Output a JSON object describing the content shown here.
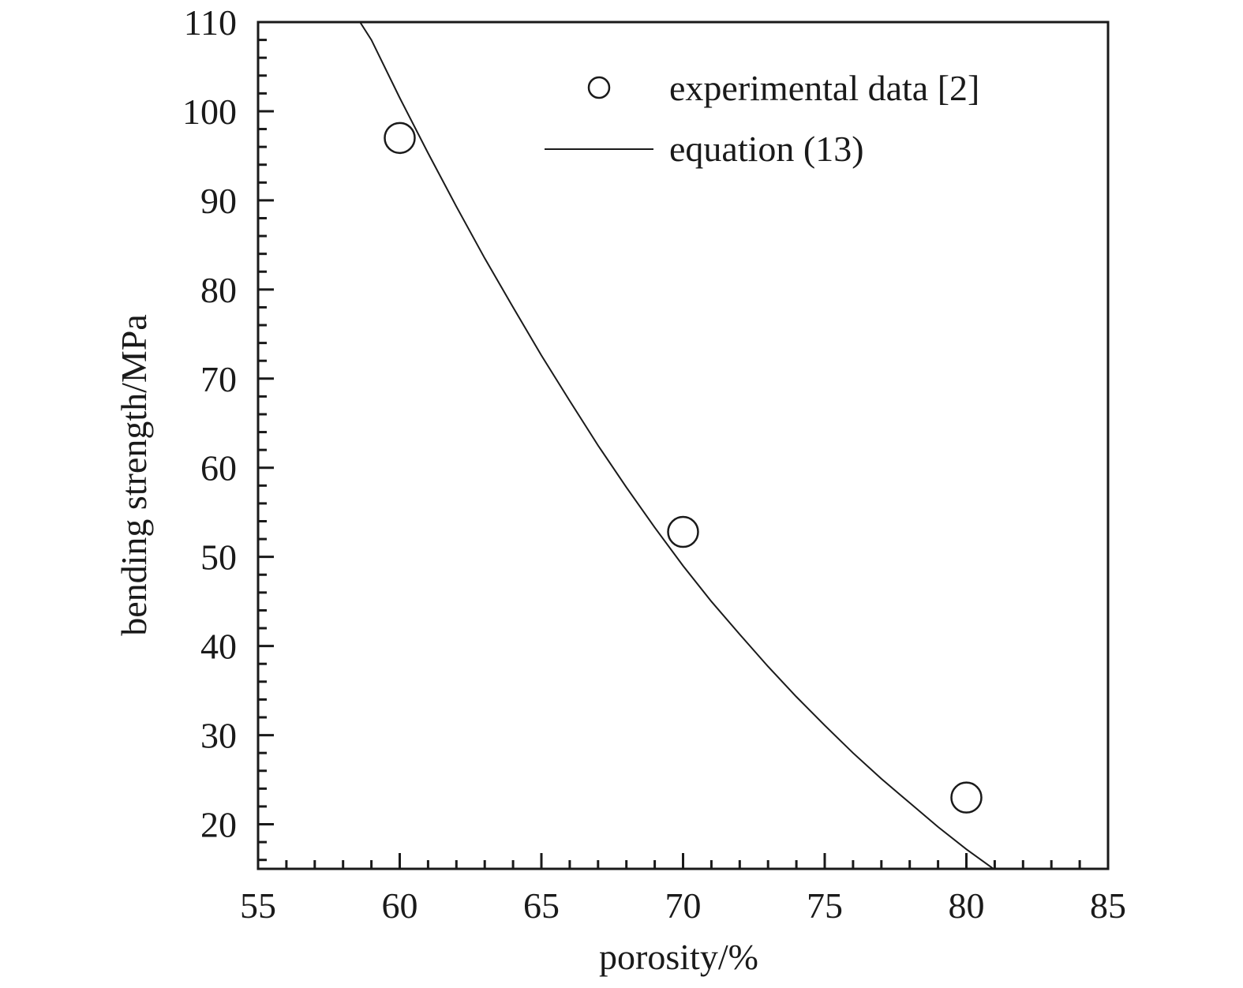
{
  "chart_data": {
    "type": "scatter",
    "xlabel": "porosity/%",
    "ylabel": "bending strength/MPa",
    "xlim": [
      55,
      85
    ],
    "ylim": [
      15,
      110
    ],
    "x_ticks": [
      55,
      60,
      65,
      70,
      75,
      80,
      85
    ],
    "y_ticks": [
      20,
      30,
      40,
      50,
      60,
      70,
      80,
      90,
      100,
      110
    ],
    "grid": false,
    "legend_position": "top-right",
    "series": [
      {
        "name": "experimental data [2]",
        "kind": "scatter",
        "marker": "open-circle",
        "x": [
          60,
          70,
          80
        ],
        "y": [
          97,
          52.8,
          23
        ]
      },
      {
        "name": "equation (13)",
        "kind": "line",
        "x": [
          58.5,
          59,
          60,
          61,
          62,
          63,
          64,
          65,
          66,
          67,
          68,
          69,
          70,
          71,
          72,
          73,
          74,
          75,
          76,
          77,
          78,
          79,
          80,
          81,
          82,
          82.9
        ],
        "y": [
          110.5,
          108,
          101.5,
          95.3,
          89.3,
          83.5,
          78.0,
          72.6,
          67.5,
          62.5,
          57.8,
          53.3,
          49.0,
          45.0,
          41.3,
          37.7,
          34.3,
          31.1,
          28.0,
          25.1,
          22.4,
          19.7,
          17.2,
          14.9,
          12.7,
          10.9
        ]
      }
    ]
  }
}
